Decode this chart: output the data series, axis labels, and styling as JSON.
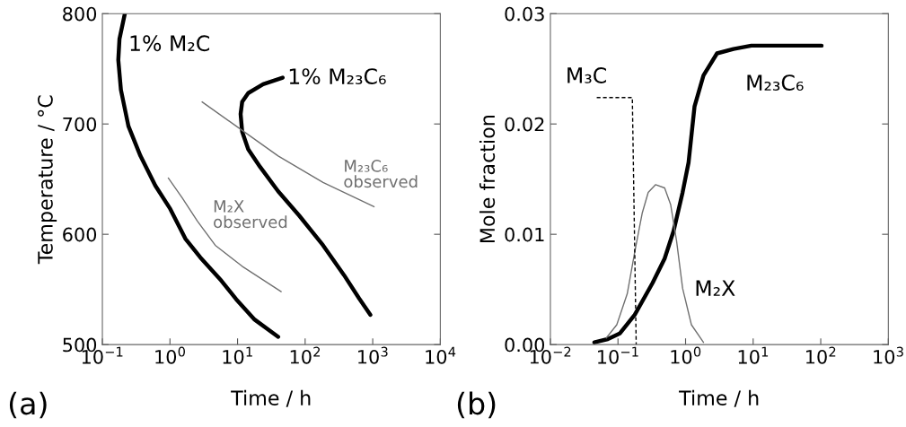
{
  "chart_data": [
    {
      "type": "line",
      "xlabel": "Time / h",
      "ylabel": "Temperature / °C",
      "log": "x",
      "grid": false,
      "legend": false,
      "xlim": [
        0.1,
        10000
      ],
      "xticks": [
        {
          "value": 0.1,
          "label": "10$^{−1}$"
        },
        {
          "value": 1,
          "label": "10$^{0}$"
        },
        {
          "value": 10,
          "label": "10$^{1}$"
        },
        {
          "value": 100,
          "label": "10$^{2}$"
        },
        {
          "value": 1000,
          "label": "10$^{3}$"
        },
        {
          "value": 10000,
          "label": "10$^{4}$"
        }
      ],
      "ylim": [
        500,
        800
      ],
      "yticks": [
        500,
        600,
        700,
        800
      ],
      "series": [
        {
          "color": "#000000",
          "x": [
            0.215,
            0.179,
            0.172,
            0.188,
            0.243,
            0.366,
            0.608,
            1.01,
            1.69,
            2.81,
            5.74,
            9.57,
            17.6,
            39.9
          ],
          "values": [
            800,
            777,
            758,
            731,
            698,
            671,
            644,
            623,
            596,
            579,
            558,
            541,
            523,
            507
          ]
        },
        {
          "color": "#000000",
          "x": [
            46.5,
            23.9,
            14.4,
            11.7,
            11.1,
            11.7,
            14.4,
            21.6,
            39.9,
            81.5,
            184,
            376,
            627,
            923
          ],
          "values": [
            742,
            736,
            728,
            720,
            709,
            693,
            677,
            661,
            639,
            617,
            590,
            563,
            542,
            527
          ]
        },
        {
          "color": "#707070",
          "x": [
            0.944,
            1.52,
            2.54,
            4.68,
            11.7,
            44.2
          ],
          "values": [
            651,
            633,
            612,
            590,
            571,
            548
          ]
        },
        {
          "color": "#707070",
          "x": [
            2.99,
            9.57,
            39.9,
            184,
            1045
          ],
          "values": [
            720,
            698,
            671,
            647,
            625
          ]
        }
      ],
      "annotations": [
        "1% M₂C",
        "1% M₂₃C₆",
        "M₂X\nobserved",
        "M₂₃C₆\nobserved",
        "(a)"
      ]
    },
    {
      "type": "line",
      "xlabel": "Time / h",
      "ylabel": "Mole fraction",
      "log": "x",
      "grid": false,
      "legend": false,
      "xlim": [
        0.01,
        1000
      ],
      "xticks": [
        {
          "value": 0.01,
          "label": "10$^{−2}$"
        },
        {
          "value": 0.1,
          "label": "10$^{−1}$"
        },
        {
          "value": 1,
          "label": "10$^{0}$"
        },
        {
          "value": 10,
          "label": "10$^{1}$"
        },
        {
          "value": 100,
          "label": "10$^{2}$"
        },
        {
          "value": 1000,
          "label": "10$^{3}$"
        }
      ],
      "ylim": [
        0,
        0.03
      ],
      "yticks": [
        {
          "value": 0,
          "label": "0.00"
        },
        {
          "value": 0.01,
          "label": "0.01"
        },
        {
          "value": 0.02,
          "label": "0.02"
        },
        {
          "value": 0.03,
          "label": "0.03"
        }
      ],
      "series": [
        {
          "color": "#000000",
          "x": [
            0.0447,
            0.0708,
            0.106,
            0.177,
            0.326,
            0.49,
            0.665,
            0.904,
            1.107,
            1.358,
            1.84,
            2.92,
            5.11,
            9.4,
            23.5,
            103
          ],
          "values": [
            0.0002,
            0.0005,
            0.001,
            0.0027,
            0.0056,
            0.0078,
            0.0103,
            0.0138,
            0.0165,
            0.0216,
            0.0244,
            0.0264,
            0.0268,
            0.0271,
            0.0271,
            0.0271
          ]
        },
        {
          "color": "#707070",
          "x": [
            0.0672,
            0.096,
            0.137,
            0.177,
            0.228,
            0.28,
            0.361,
            0.49,
            0.601,
            0.736,
            0.904,
            1.22,
            1.84
          ],
          "values": [
            0.0006,
            0.0018,
            0.0046,
            0.0084,
            0.0119,
            0.0138,
            0.0145,
            0.0142,
            0.0127,
            0.0094,
            0.0051,
            0.0018,
            0.0002
          ]
        },
        {
          "color": "#000000",
          "line_style": "dashed",
          "x": [
            0.0485,
            0.163,
            0.186
          ],
          "values": [
            0.0224,
            0.0224,
            0
          ]
        }
      ],
      "annotations": [
        "M₃C",
        "M₂₃C₆",
        "M₂X",
        "(b)"
      ]
    }
  ]
}
